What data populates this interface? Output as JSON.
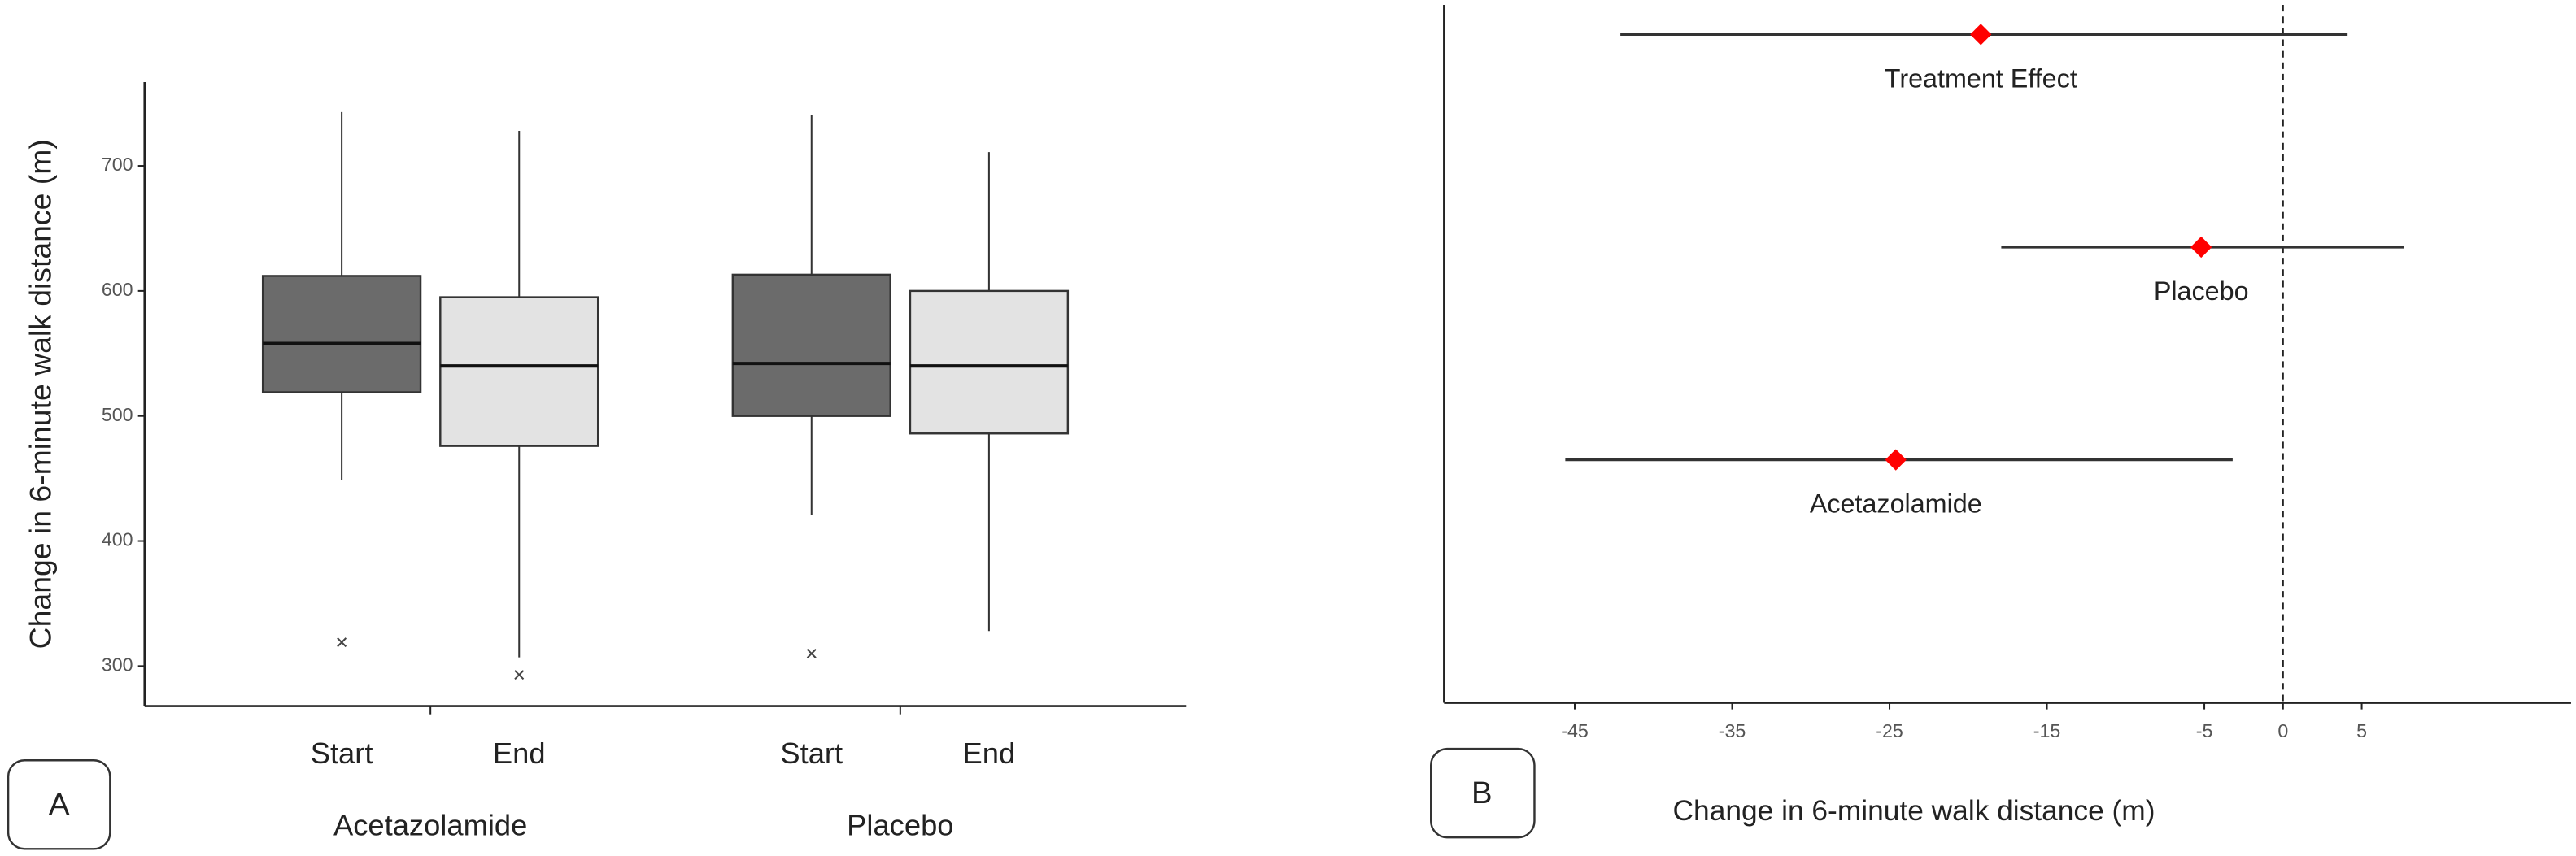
{
  "chart_data": [
    {
      "type": "box",
      "panel": "A",
      "ylabel": "Change in 6-minute walk distance (m)",
      "categories": [
        "Acetazolamide",
        "Placebo"
      ],
      "ylim": [
        268,
        767
      ],
      "yticks": [
        300,
        400,
        500,
        600,
        700
      ],
      "series": [
        {
          "name": "Start",
          "color": "#6b6b6b",
          "whisker_low": [
            449,
            421
          ],
          "q1": [
            519,
            500
          ],
          "median": [
            558,
            542
          ],
          "q3": [
            612,
            613
          ],
          "whisker_high": [
            743,
            741
          ],
          "outliers": [
            319,
            310
          ]
        },
        {
          "name": "End",
          "color": "#e3e3e3",
          "whisker_low": [
            307,
            328
          ],
          "q1": [
            476,
            486
          ],
          "median": [
            540,
            540
          ],
          "q3": [
            595,
            600
          ],
          "whisker_high": [
            728,
            711
          ],
          "outliers": [
            293,
            null
          ]
        }
      ]
    },
    {
      "type": "forest",
      "panel": "B",
      "xlabel": "Change in 6-minute walk distance (m)",
      "categories": [
        "Treatment Effect",
        "Placebo",
        "Acetazolamide"
      ],
      "values": [
        -19.2,
        -5.2,
        -24.6
      ],
      "ci_low": [
        -42.1,
        -17.9,
        -45.6
      ],
      "ci_high": [
        4.1,
        7.7,
        -3.2
      ],
      "color": "#ff0000",
      "refline": 0,
      "xlim": [
        -53.3,
        18.3
      ],
      "xticks": [
        -45,
        -35,
        -25,
        -15,
        -5,
        0,
        5
      ]
    }
  ]
}
